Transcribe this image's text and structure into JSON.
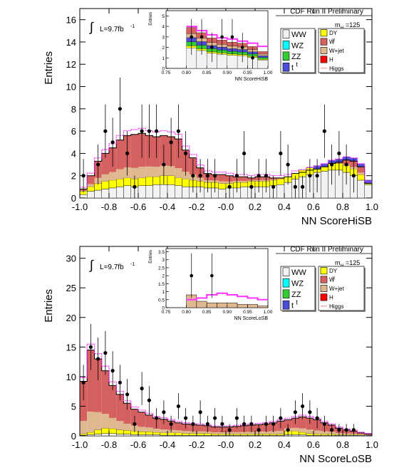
{
  "chart_data": [
    {
      "type": "bar",
      "panel": "upper",
      "experiment_label": "CDF Run II Preliminary",
      "luminosity_label": "L=9.7fb",
      "luminosity_sup": "-1",
      "mass_label": "m",
      "mass_sub": "H",
      "mass_value": "=125",
      "xlabel": "NN ScoreHiSB",
      "ylabel": "Entries",
      "xlim": [
        -1.0,
        1.0
      ],
      "ylim": [
        0,
        17
      ],
      "xticks": [
        "-1.0",
        "-0.8",
        "-0.6",
        "-0.4",
        "-0.2",
        "-0.0",
        "0.2",
        "0.4",
        "0.6",
        "0.8",
        "1.0"
      ],
      "xtick_values": [
        -1.0,
        -0.8,
        -0.6,
        -0.4,
        -0.2,
        0.0,
        0.2,
        0.4,
        0.6,
        0.8,
        1.0
      ],
      "yticks": [
        "0",
        "2",
        "4",
        "6",
        "8",
        "10",
        "12",
        "14",
        "16"
      ],
      "ytick_values": [
        0,
        2,
        4,
        6,
        8,
        10,
        12,
        14,
        16
      ],
      "bin_edges": [
        -1.0,
        0.0,
        1.0
      ],
      "bins": 40,
      "stack_low": [
        0.3,
        0.6,
        0.7,
        0.8,
        0.9,
        1.0,
        1.1,
        1.0,
        1.1,
        1.1,
        1.2,
        1.2,
        1.2,
        1.1,
        1.0,
        1.0,
        1.0,
        0.9,
        0.9,
        0.8,
        0.9,
        0.9,
        1.0,
        1.0,
        1.0,
        1.0,
        1.1,
        1.2,
        1.4,
        1.7,
        1.9,
        2.1,
        2.3,
        2.4,
        2.5,
        2.5,
        2.3,
        2.0,
        1.6,
        1.2
      ],
      "stack_high": [
        0.6,
        1.0,
        1.3,
        1.5,
        1.6,
        1.7,
        1.8,
        1.7,
        1.8,
        1.9,
        1.9,
        2.0,
        2.0,
        1.8,
        1.7,
        1.6,
        1.5,
        1.4,
        1.4,
        1.3,
        1.3,
        1.4,
        1.4,
        1.5,
        1.5,
        1.5,
        1.6,
        1.7,
        1.9,
        2.2,
        2.5,
        2.7,
        2.9,
        3.0,
        3.1,
        3.1,
        2.9,
        2.6,
        2.1,
        1.6
      ],
      "total": [
        0.8,
        2.0,
        3.3,
        4.0,
        4.5,
        5.2,
        5.6,
        5.7,
        5.8,
        5.6,
        5.5,
        5.6,
        5.5,
        5.3,
        4.3,
        3.6,
        2.7,
        2.2,
        2.1,
        2.1,
        2.0,
        1.9,
        1.9,
        1.8,
        1.9,
        1.9,
        1.8,
        1.8,
        1.9,
        2.2,
        2.3,
        2.5,
        2.6,
        2.8,
        3.1,
        3.2,
        3.4,
        3.3,
        2.8,
        1.3
      ],
      "points": {
        "x": [
          -0.975,
          -0.875,
          -0.825,
          -0.775,
          -0.725,
          -0.675,
          -0.625,
          -0.575,
          -0.525,
          -0.475,
          -0.425,
          -0.375,
          -0.325,
          -0.275,
          -0.225,
          -0.175,
          -0.125,
          -0.075,
          0.025,
          0.075,
          0.125,
          0.175,
          0.225,
          0.275,
          0.325,
          0.375,
          0.425,
          0.475,
          0.525,
          0.575,
          0.625,
          0.675,
          0.725,
          0.775,
          0.825,
          0.875
        ],
        "y": [
          2,
          3,
          6,
          5,
          8,
          4,
          1,
          6,
          6,
          6,
          3,
          5,
          6,
          4,
          2,
          2,
          2,
          2,
          1,
          2,
          4,
          1,
          2,
          2,
          1,
          4,
          3,
          1,
          1,
          2,
          2,
          6,
          3,
          4,
          3,
          2
        ],
        "err": [
          1.5,
          1.8,
          2.4,
          2.2,
          2.8,
          2.0,
          1.0,
          2.4,
          2.4,
          2.4,
          1.8,
          2.2,
          2.4,
          2.0,
          1.5,
          1.5,
          1.5,
          1.5,
          1.0,
          1.5,
          2.0,
          1.0,
          1.5,
          1.5,
          1.0,
          2.0,
          1.8,
          1.0,
          1.0,
          1.5,
          1.5,
          2.4,
          1.8,
          2.0,
          1.8,
          1.5
        ]
      },
      "legend_left": [
        {
          "label": "WW",
          "color": "#f2f2f2",
          "sup": ""
        },
        {
          "label": "WZ",
          "color": "#00ffff",
          "sup": ""
        },
        {
          "label": "ZZ",
          "color": "#33cc33",
          "sup": ""
        },
        {
          "label": "t",
          "color": "#4c4cd9",
          "sup": "t"
        }
      ],
      "legend_right": [
        {
          "label": "DY",
          "color": "#ffff00",
          "sup": ""
        },
        {
          "label": "W",
          "color": "#d46060",
          "sup": "γ"
        },
        {
          "label": "W+jet",
          "color": "#e0b890",
          "sup": ""
        },
        {
          "label": "H",
          "color": "#ff0000",
          "sup": ""
        },
        {
          "label": "Higgs",
          "color": "#ff9999",
          "sup": "",
          "line": true
        }
      ],
      "inset": {
        "xlabel": "NN ScoreHiSB",
        "ylabel": "Entries",
        "xlim": [
          0.75,
          1.0
        ],
        "ylim": [
          0,
          5.5
        ],
        "xticks": [
          "0.75",
          "0.80",
          "0.85",
          "0.90",
          "0.95",
          "1.00"
        ],
        "xtick_values": [
          0.75,
          0.8,
          0.85,
          0.9,
          0.95,
          1.0
        ],
        "yticks": [
          "0",
          "1",
          "2",
          "3",
          "4",
          "5"
        ],
        "ytick_values": [
          0,
          1,
          2,
          3,
          4,
          5
        ],
        "bins_x": [
          0.8,
          0.825,
          0.85,
          0.875,
          0.9,
          0.925,
          0.95,
          0.975
        ],
        "total": [
          3.9,
          3.4,
          2.9,
          2.7,
          2.5,
          2.4,
          2.1,
          1.6
        ],
        "signal": [
          4.0,
          3.6,
          3.2,
          2.9,
          2.8,
          2.6,
          2.4,
          2.1
        ],
        "points_x": [
          0.8125,
          0.8375,
          0.8625,
          0.8875,
          0.9125,
          0.9375,
          0.9625
        ],
        "points_y": [
          3,
          3,
          2,
          3,
          3,
          2,
          1
        ],
        "points_err": [
          1.7,
          1.7,
          1.4,
          1.7,
          1.7,
          1.4,
          1.0
        ]
      }
    },
    {
      "type": "bar",
      "panel": "lower",
      "experiment_label": "CDF Run II Preliminary",
      "luminosity_label": "L=9.7fb",
      "luminosity_sup": "-1",
      "mass_label": "m",
      "mass_sub": "H",
      "mass_value": "=125",
      "xlabel": "NN ScoreLoSB",
      "ylabel": "Entries",
      "xlim": [
        -1.0,
        1.0
      ],
      "ylim": [
        0,
        32
      ],
      "xticks": [
        "-1.0",
        "-0.8",
        "-0.6",
        "-0.4",
        "-0.2",
        "-0.0",
        "0.2",
        "0.4",
        "0.6",
        "0.8",
        "1.0"
      ],
      "xtick_values": [
        -1.0,
        -0.8,
        -0.6,
        -0.4,
        -0.2,
        0.0,
        0.2,
        0.4,
        0.6,
        0.8,
        1.0
      ],
      "yticks": [
        "0",
        "5",
        "10",
        "15",
        "20",
        "25",
        "30"
      ],
      "ytick_values": [
        0,
        5,
        10,
        15,
        20,
        25,
        30
      ],
      "bins": 40,
      "stack_low": [
        0.1,
        0.2,
        0.3,
        0.4,
        0.4,
        0.3,
        0.3,
        0.2,
        0.2,
        0.2,
        0.2,
        0.1,
        0.1,
        0.1,
        0.1,
        0.1,
        0.1,
        0.1,
        0.1,
        0.1,
        0.1,
        0.1,
        0.1,
        0.1,
        0.1,
        0.1,
        0.1,
        0.1,
        0.2,
        0.2,
        0.2,
        0.1,
        0.1,
        0.1,
        0.1,
        0.1,
        0.1,
        0.1,
        0.1,
        0.1
      ],
      "stack_high": [
        0.3,
        0.6,
        1.0,
        1.3,
        1.2,
        1.0,
        0.9,
        0.8,
        0.7,
        0.7,
        0.6,
        0.5,
        0.5,
        0.5,
        0.4,
        0.4,
        0.4,
        0.4,
        0.3,
        0.3,
        0.3,
        0.3,
        0.3,
        0.3,
        0.3,
        0.3,
        0.3,
        0.3,
        0.8,
        0.8,
        0.6,
        0.4,
        0.3,
        0.3,
        0.3,
        0.2,
        0.2,
        0.2,
        0.2,
        0.1
      ],
      "total": [
        9.2,
        14.5,
        13.0,
        11.0,
        8.5,
        7.0,
        5.5,
        4.5,
        4.0,
        3.5,
        3.0,
        2.8,
        2.5,
        2.2,
        2.0,
        1.9,
        1.8,
        1.7,
        1.5,
        1.5,
        1.5,
        1.6,
        1.7,
        1.8,
        1.9,
        2.0,
        2.2,
        2.5,
        2.7,
        3.0,
        3.2,
        3.0,
        2.7,
        2.2,
        1.8,
        1.3,
        1.0,
        0.8,
        0.5,
        0.3
      ],
      "points": {
        "x": [
          -0.975,
          -0.925,
          -0.875,
          -0.825,
          -0.775,
          -0.725,
          -0.675,
          -0.625,
          -0.575,
          -0.525,
          -0.475,
          -0.425,
          -0.375,
          -0.325,
          -0.275,
          -0.225,
          -0.175,
          -0.125,
          -0.075,
          -0.025,
          0.025,
          0.075,
          0.125,
          0.175,
          0.225,
          0.275,
          0.325,
          0.375,
          0.425,
          0.475,
          0.525,
          0.575,
          0.625,
          0.675,
          0.725,
          0.775,
          0.825,
          0.875
        ],
        "y": [
          9,
          15,
          13,
          14,
          11,
          9,
          7,
          2,
          8,
          6,
          3,
          4,
          2,
          5,
          3,
          2,
          4,
          2,
          3,
          2,
          1,
          3,
          2,
          2,
          1,
          2,
          2,
          3,
          1,
          4,
          5,
          4,
          3,
          2,
          1,
          1,
          1,
          1
        ],
        "err": [
          3.0,
          3.9,
          3.6,
          3.7,
          3.3,
          3.0,
          2.6,
          1.4,
          2.8,
          2.4,
          1.7,
          2.0,
          1.4,
          2.2,
          1.7,
          1.4,
          2.0,
          1.4,
          1.7,
          1.4,
          1.0,
          1.7,
          1.4,
          1.4,
          1.0,
          1.4,
          1.4,
          1.7,
          1.0,
          2.0,
          2.2,
          2.0,
          1.7,
          1.4,
          1.0,
          1.0,
          1.0,
          1.0
        ]
      },
      "legend_left": [
        {
          "label": "WW",
          "color": "#f2f2f2",
          "sup": ""
        },
        {
          "label": "WZ",
          "color": "#00ffff",
          "sup": ""
        },
        {
          "label": "ZZ",
          "color": "#33cc33",
          "sup": ""
        },
        {
          "label": "t",
          "color": "#4c4cd9",
          "sup": "t"
        }
      ],
      "legend_right": [
        {
          "label": "DY",
          "color": "#ffff00",
          "sup": ""
        },
        {
          "label": "W",
          "color": "#d46060",
          "sup": "γ"
        },
        {
          "label": "W+jet",
          "color": "#e0b890",
          "sup": ""
        },
        {
          "label": "H",
          "color": "#ff0000",
          "sup": ""
        },
        {
          "label": "Higgs",
          "color": "#ff9999",
          "sup": "",
          "line": true
        }
      ],
      "inset": {
        "xlabel": "NN ScoreLoSB",
        "ylabel": "Entries",
        "xlim": [
          0.75,
          1.0
        ],
        "ylim": [
          0,
          3.7
        ],
        "xticks": [
          "0.75",
          "0.80",
          "0.85",
          "0.90",
          "0.95",
          "1.00"
        ],
        "xtick_values": [
          0.75,
          0.8,
          0.85,
          0.9,
          0.95,
          1.0
        ],
        "yticks": [
          "0",
          "0.5",
          "1",
          "1.5",
          "2",
          "2.5",
          "3",
          "3.5"
        ],
        "ytick_values": [
          0,
          0.5,
          1,
          1.5,
          2,
          2.5,
          3,
          3.5
        ],
        "bins_x": [
          0.8,
          0.825,
          0.85,
          0.875,
          0.9,
          0.925,
          0.95,
          0.975
        ],
        "total": [
          0.8,
          0.4,
          0.3,
          0.3,
          0.3,
          0.2,
          0.2,
          0.1
        ],
        "signal": [
          0.5,
          0.6,
          0.8,
          0.9,
          0.8,
          0.7,
          0.6,
          0.5
        ],
        "points_x": [
          0.8125,
          0.8625
        ],
        "points_y": [
          2,
          2
        ],
        "points_err": [
          1.4,
          1.4
        ]
      }
    }
  ]
}
